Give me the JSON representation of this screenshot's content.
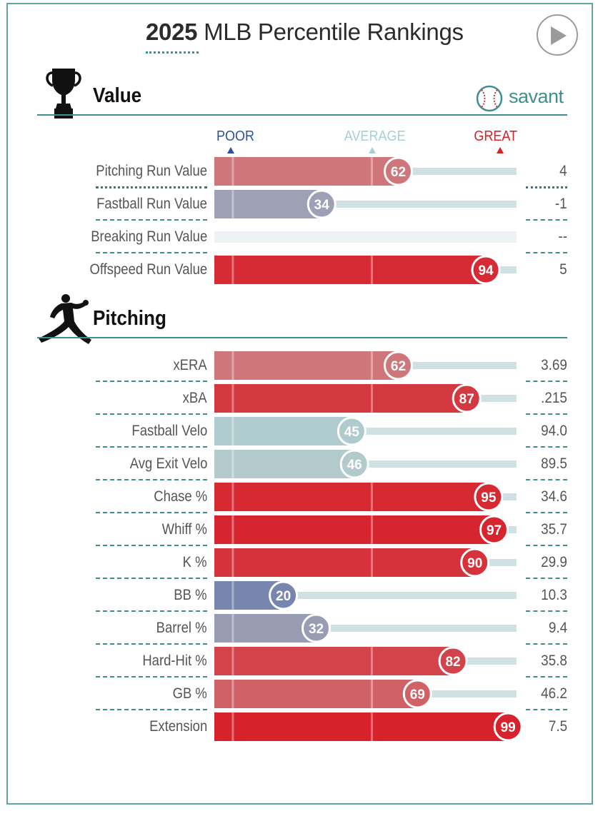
{
  "header": {
    "year": "2025",
    "title": "MLB Percentile Rankings"
  },
  "brand": {
    "name": "savant"
  },
  "legend": {
    "poor": "POOR",
    "average": "AVERAGE",
    "great": "GREAT"
  },
  "colors": {
    "accent": "#3f8f92",
    "poor": "#2f4fa0",
    "average": "#a9cfd2",
    "great": "#d7202a",
    "track": "#cfe1e3"
  },
  "chart_data": {
    "type": "percentile-bar",
    "title": "2025 MLB Percentile Rankings",
    "axis": {
      "min": 0,
      "max": 100,
      "markers": [
        0,
        50,
        100
      ]
    },
    "sections": [
      {
        "name": "Value",
        "icon": "trophy-icon",
        "rows": [
          {
            "label": "Pitching Run Value",
            "percentile": 62,
            "value": "4"
          },
          {
            "label": "Fastball Run Value",
            "percentile": 34,
            "value": "-1"
          },
          {
            "label": "Breaking Run Value",
            "percentile": null,
            "value": "--"
          },
          {
            "label": "Offspeed Run Value",
            "percentile": 94,
            "value": "5"
          }
        ]
      },
      {
        "name": "Pitching",
        "icon": "pitcher-icon",
        "rows": [
          {
            "label": "xERA",
            "percentile": 62,
            "value": "3.69"
          },
          {
            "label": "xBA",
            "percentile": 87,
            "value": ".215"
          },
          {
            "label": "Fastball Velo",
            "percentile": 45,
            "value": "94.0"
          },
          {
            "label": "Avg Exit Velo",
            "percentile": 46,
            "value": "89.5"
          },
          {
            "label": "Chase %",
            "percentile": 95,
            "value": "34.6"
          },
          {
            "label": "Whiff %",
            "percentile": 97,
            "value": "35.7"
          },
          {
            "label": "K %",
            "percentile": 90,
            "value": "29.9"
          },
          {
            "label": "BB %",
            "percentile": 20,
            "value": "10.3"
          },
          {
            "label": "Barrel %",
            "percentile": 32,
            "value": "9.4"
          },
          {
            "label": "Hard-Hit %",
            "percentile": 82,
            "value": "35.8"
          },
          {
            "label": "GB %",
            "percentile": 69,
            "value": "46.2"
          },
          {
            "label": "Extension",
            "percentile": 99,
            "value": "7.5"
          }
        ]
      }
    ]
  }
}
